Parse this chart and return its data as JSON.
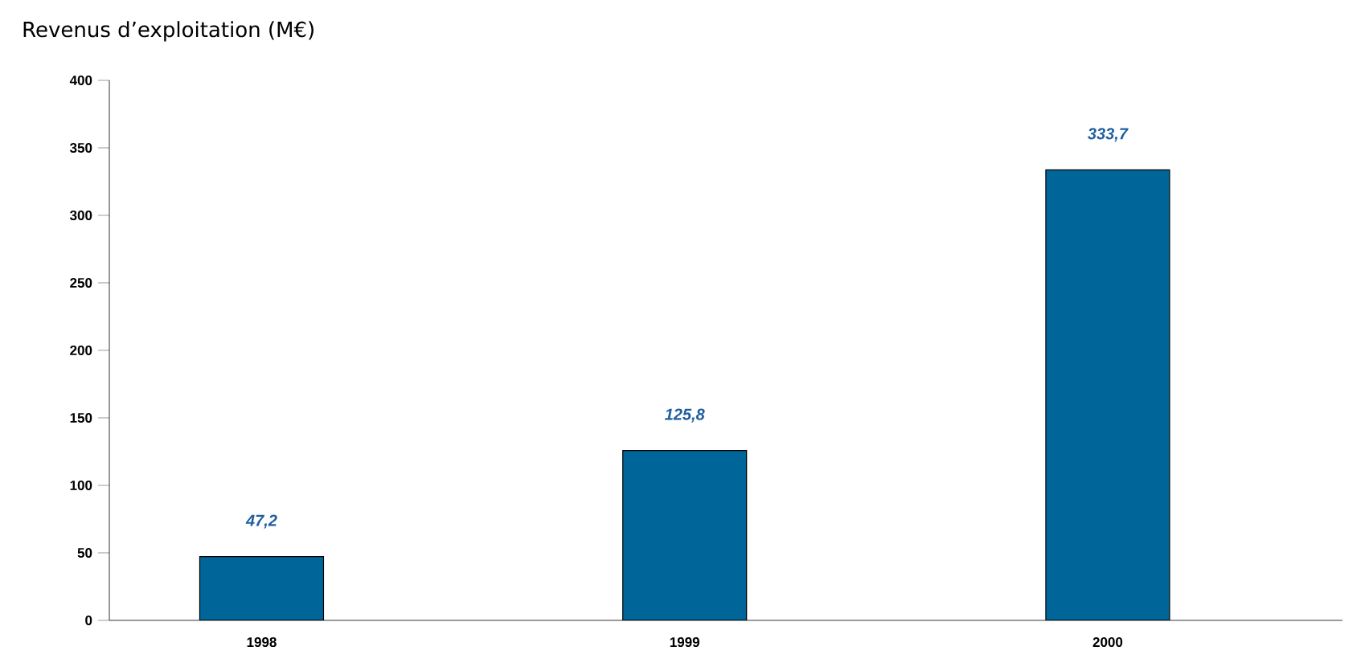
{
  "chart_data": {
    "type": "bar",
    "title": "Revenus d’exploitation (M€)",
    "categories": [
      "1998",
      "1999",
      "2000"
    ],
    "values": [
      47.2,
      125.8,
      333.7
    ],
    "value_labels": [
      "47,2",
      "125,8",
      "333,7"
    ],
    "color": "#006699",
    "ylim": [
      0,
      400
    ],
    "yticks": [
      0,
      50,
      100,
      150,
      200,
      250,
      300,
      350,
      400
    ],
    "grid": false
  }
}
